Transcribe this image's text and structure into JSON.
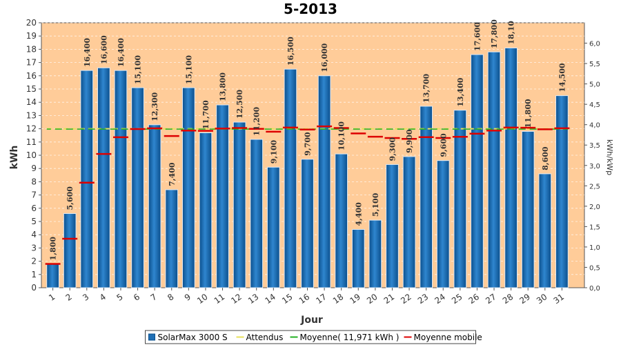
{
  "chart_data": {
    "type": "bar",
    "title": "5-2013",
    "xlabel": "Jour",
    "ylabel": "kWh",
    "y2label": "kWh/kWp",
    "ylim": [
      0,
      20
    ],
    "y2lim": [
      0,
      6.5
    ],
    "yticks": [
      "0",
      "1",
      "2",
      "3",
      "4",
      "5",
      "6",
      "7",
      "8",
      "9",
      "10",
      "11",
      "12",
      "13",
      "14",
      "15",
      "16",
      "17",
      "18",
      "19",
      "20"
    ],
    "y2ticks": [
      "0,0",
      "0,5",
      "1,0",
      "1,5",
      "2,0",
      "2,5",
      "3,0",
      "3,5",
      "4,0",
      "4,5",
      "5,0",
      "5,5",
      "6,0"
    ],
    "grid": true,
    "categories": [
      "1",
      "2",
      "3",
      "4",
      "5",
      "6",
      "7",
      "8",
      "9",
      "10",
      "11",
      "12",
      "13",
      "14",
      "15",
      "16",
      "17",
      "18",
      "19",
      "20",
      "21",
      "22",
      "23",
      "24",
      "25",
      "26",
      "27",
      "28",
      "29",
      "30",
      "31"
    ],
    "series": [
      {
        "name": "SolarMax 3000 S",
        "type": "bar",
        "color": "#1f6fb5",
        "values": [
          1.8,
          5.6,
          16.4,
          16.6,
          16.4,
          15.1,
          12.3,
          7.4,
          15.1,
          11.7,
          13.8,
          12.5,
          11.2,
          9.1,
          16.5,
          9.7,
          16.0,
          10.1,
          4.4,
          5.1,
          9.3,
          9.9,
          13.7,
          9.6,
          13.4,
          17.6,
          17.8,
          18.1,
          11.8,
          8.6,
          14.5
        ],
        "labels": [
          "1,800",
          "5,600",
          "16,400",
          "16,600",
          "16,400",
          "15,100",
          "12,300",
          "7,400",
          "15,100",
          "11,700",
          "13,800",
          "12,500",
          "11,200",
          "9,100",
          "16,500",
          "9,700",
          "16,000",
          "10,100",
          "4,400",
          "5,100",
          "9,300",
          "9,900",
          "13,700",
          "9,600",
          "13,400",
          "17,600",
          "17,800",
          "18,10",
          "11,800",
          "8,600",
          "14,500"
        ]
      },
      {
        "name": "Attendus",
        "type": "line",
        "color": "#e8e05a",
        "values": [
          12,
          12,
          12,
          12,
          12,
          12,
          12,
          12,
          12,
          12,
          12,
          12,
          12,
          12,
          12,
          12,
          12,
          12,
          12,
          12,
          12,
          12,
          12,
          12,
          12,
          12,
          12,
          12,
          12,
          12,
          12
        ]
      },
      {
        "name": "Moyenne( 11,971 kWh )",
        "type": "line",
        "color": "#22b022",
        "values": [
          11.971,
          11.971,
          11.971,
          11.971,
          11.971,
          11.971,
          11.971,
          11.971,
          11.971,
          11.971,
          11.971,
          11.971,
          11.971,
          11.971,
          11.971,
          11.971,
          11.971,
          11.971,
          11.971,
          11.971,
          11.971,
          11.971,
          11.971,
          11.971,
          11.971,
          11.971,
          11.971,
          11.971,
          11.971,
          11.971,
          11.971
        ]
      },
      {
        "name": "Moyenne mobile",
        "type": "marker",
        "color": "#dd0000",
        "values": [
          1.8,
          3.7,
          7.93,
          10.1,
          11.36,
          11.98,
          12.03,
          11.45,
          11.86,
          11.84,
          12.02,
          12.06,
          11.99,
          11.78,
          12.09,
          11.94,
          12.18,
          12.06,
          11.65,
          11.4,
          11.3,
          11.24,
          11.37,
          11.3,
          11.39,
          11.63,
          11.86,
          12.09,
          12.08,
          11.96,
          12.04
        ]
      }
    ],
    "legend": "bottom"
  }
}
